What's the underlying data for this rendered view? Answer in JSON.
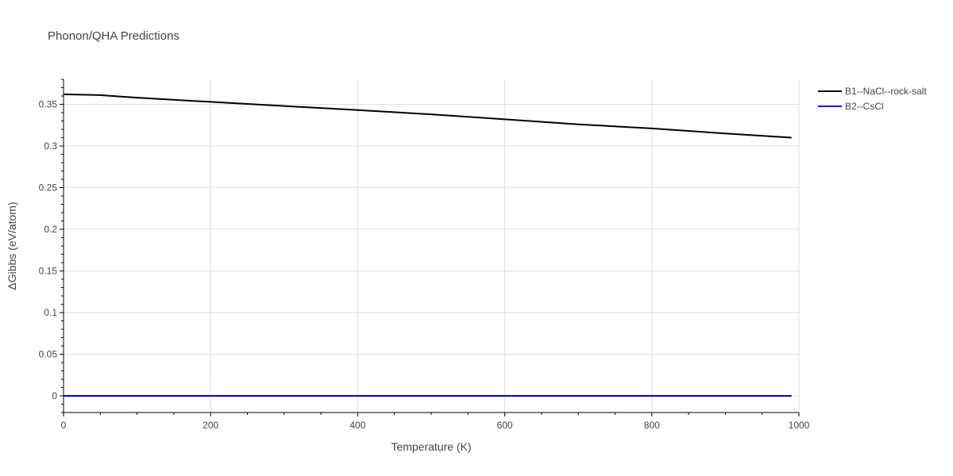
{
  "chart_data": {
    "type": "line",
    "title": "Phonon/QHA Predictions",
    "xlabel": "Temperature (K)",
    "ylabel": "ΔGibbs (eV/atom)",
    "xlim": [
      0,
      1000
    ],
    "ylim": [
      -0.02,
      0.38
    ],
    "x_ticks": [
      0,
      200,
      400,
      600,
      800,
      1000
    ],
    "x_tick_labels": [
      "0",
      "200",
      "400",
      "600",
      "800",
      "1000"
    ],
    "y_ticks": [
      0,
      0.05,
      0.1,
      0.15,
      0.2,
      0.25,
      0.3,
      0.35
    ],
    "y_tick_labels": [
      "0",
      "0.05",
      "0.1",
      "0.15",
      "0.2",
      "0.25",
      "0.3",
      "0.35"
    ],
    "grid": true,
    "legend_position": "top-right",
    "series": [
      {
        "name": "B1--NaCl--rock-salt",
        "color": "#000000",
        "x": [
          0,
          50,
          100,
          200,
          300,
          400,
          500,
          600,
          700,
          800,
          900,
          990
        ],
        "y": [
          0.362,
          0.361,
          0.358,
          0.353,
          0.348,
          0.343,
          0.338,
          0.332,
          0.326,
          0.321,
          0.315,
          0.31
        ]
      },
      {
        "name": "B2--CsCl",
        "color": "#0000ff",
        "x": [
          0,
          990
        ],
        "y": [
          0,
          0
        ]
      }
    ]
  }
}
